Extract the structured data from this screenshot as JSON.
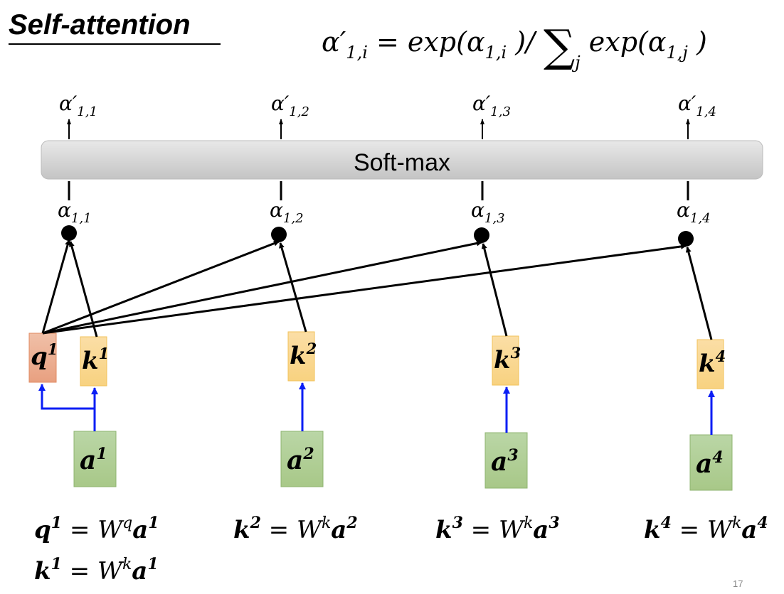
{
  "title": "Self-attention",
  "formula": {
    "lhs": "α′",
    "lhs_sub": "1,i",
    "eq": " = exp(α",
    "sub1": "1,i",
    "mid": " )/ ",
    "sum": "∑",
    "sum_sub": "j",
    "rest": " exp(α",
    "sub2": "1,j",
    "end": " )"
  },
  "softmax_label": "Soft-max",
  "outputs": [
    {
      "sym": "α′",
      "sub": "1,1"
    },
    {
      "sym": "α′",
      "sub": "1,2"
    },
    {
      "sym": "α′",
      "sub": "1,3"
    },
    {
      "sym": "α′",
      "sub": "1,4"
    }
  ],
  "scores": [
    {
      "sym": "α",
      "sub": "1,1"
    },
    {
      "sym": "α",
      "sub": "1,2"
    },
    {
      "sym": "α",
      "sub": "1,3"
    },
    {
      "sym": "α",
      "sub": "1,4"
    }
  ],
  "query": {
    "sym": "q",
    "sup": "1"
  },
  "keys": [
    {
      "sym": "k",
      "sup": "1"
    },
    {
      "sym": "k",
      "sup": "2"
    },
    {
      "sym": "k",
      "sup": "3"
    },
    {
      "sym": "k",
      "sup": "4"
    }
  ],
  "inputs": [
    {
      "sym": "a",
      "sup": "1"
    },
    {
      "sym": "a",
      "sup": "2"
    },
    {
      "sym": "a",
      "sup": "3"
    },
    {
      "sym": "a",
      "sup": "4"
    }
  ],
  "equations": [
    {
      "lhs": "q",
      "lhs_sup": "1",
      "mid": " = W",
      "w_sup": "q",
      "rhs": "a",
      "rhs_sup": "1"
    },
    {
      "lhs": "k",
      "lhs_sup": "2",
      "mid": " = W",
      "w_sup": "k",
      "rhs": "a",
      "rhs_sup": "2"
    },
    {
      "lhs": "k",
      "lhs_sup": "3",
      "mid": " = W",
      "w_sup": "k",
      "rhs": "a",
      "rhs_sup": "3"
    },
    {
      "lhs": "k",
      "lhs_sup": "4",
      "mid": " = W",
      "w_sup": "k",
      "rhs": "a",
      "rhs_sup": "4"
    },
    {
      "lhs": "k",
      "lhs_sup": "1",
      "mid": " = W",
      "w_sup": "k",
      "rhs": "a",
      "rhs_sup": "1"
    }
  ],
  "page_number": "17",
  "colors": {
    "query": "#eeac8e",
    "key": "#fad58e",
    "input": "#acca90",
    "blue_arrow": "#0a1ef5",
    "softmax": "#d6d6d6"
  }
}
